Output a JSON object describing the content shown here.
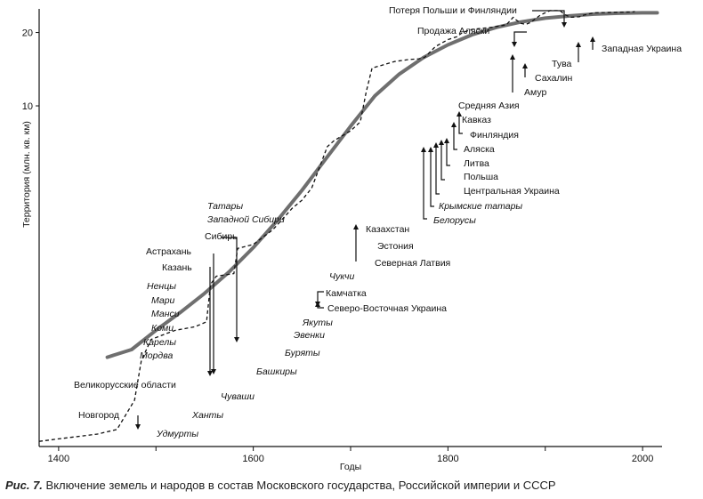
{
  "chart_data": {
    "type": "line",
    "xlabel": "Годы",
    "ylabel": "Территория (млн. кв. км)",
    "xlim": [
      1380,
      2020
    ],
    "ylim": [
      0.4,
      25
    ],
    "y_scale": "log",
    "x_ticks": [
      1400,
      1600,
      1800,
      2000
    ],
    "x_minor_ticks": [
      1500,
      1700,
      1900
    ],
    "y_ticks": [
      10,
      20
    ],
    "series": [
      {
        "name": "logistic-trend",
        "style": "solid",
        "points": [
          [
            1450,
            0.93
          ],
          [
            1475,
            1.0
          ],
          [
            1500,
            1.2
          ],
          [
            1525,
            1.42
          ],
          [
            1550,
            1.7
          ],
          [
            1575,
            2.08
          ],
          [
            1600,
            2.62
          ],
          [
            1625,
            3.4
          ],
          [
            1650,
            4.5
          ],
          [
            1675,
            6.1
          ],
          [
            1700,
            8.25
          ],
          [
            1725,
            11.0
          ],
          [
            1750,
            13.5
          ],
          [
            1775,
            15.8
          ],
          [
            1800,
            17.8
          ],
          [
            1825,
            19.6
          ],
          [
            1850,
            21.0
          ],
          [
            1875,
            22.1
          ],
          [
            1900,
            22.9
          ],
          [
            1925,
            23.4
          ],
          [
            1950,
            23.8
          ],
          [
            1975,
            24.0
          ],
          [
            2000,
            24.1
          ],
          [
            2015,
            24.1
          ]
        ]
      },
      {
        "name": "actual-territory",
        "style": "dashed",
        "points": [
          [
            1380,
            0.42
          ],
          [
            1400,
            0.43
          ],
          [
            1420,
            0.44
          ],
          [
            1440,
            0.45
          ],
          [
            1460,
            0.47
          ],
          [
            1478,
            0.62
          ],
          [
            1485,
            0.9
          ],
          [
            1495,
            1.1
          ],
          [
            1510,
            1.16
          ],
          [
            1520,
            1.2
          ],
          [
            1540,
            1.24
          ],
          [
            1552,
            1.3
          ],
          [
            1556,
            1.85
          ],
          [
            1562,
            2.0
          ],
          [
            1580,
            2.05
          ],
          [
            1584,
            2.6
          ],
          [
            1600,
            2.7
          ],
          [
            1620,
            3.1
          ],
          [
            1640,
            3.8
          ],
          [
            1650,
            4.1
          ],
          [
            1660,
            4.6
          ],
          [
            1676,
            6.8
          ],
          [
            1683,
            7.2
          ],
          [
            1700,
            7.9
          ],
          [
            1710,
            8.6
          ],
          [
            1716,
            11.4
          ],
          [
            1722,
            14.3
          ],
          [
            1730,
            14.6
          ],
          [
            1745,
            15.2
          ],
          [
            1760,
            15.5
          ],
          [
            1770,
            15.6
          ],
          [
            1776,
            15.8
          ],
          [
            1780,
            16.4
          ],
          [
            1787,
            17.5
          ],
          [
            1800,
            18.7
          ],
          [
            1809,
            19.2
          ],
          [
            1815,
            20.0
          ],
          [
            1825,
            20.6
          ],
          [
            1845,
            21.0
          ],
          [
            1860,
            21.5
          ],
          [
            1867,
            23.1
          ],
          [
            1869,
            22.7
          ],
          [
            1875,
            21.8
          ],
          [
            1880,
            21.6
          ],
          [
            1885,
            22.0
          ],
          [
            1895,
            23.6
          ],
          [
            1905,
            24.6
          ],
          [
            1915,
            24.6
          ],
          [
            1920,
            23.7
          ],
          [
            1926,
            23.1
          ],
          [
            1935,
            23.2
          ],
          [
            1940,
            23.6
          ],
          [
            1950,
            24.1
          ],
          [
            1970,
            24.2
          ],
          [
            1990,
            24.3
          ],
          [
            1992,
            24.4
          ]
        ]
      }
    ],
    "annotations": [
      {
        "text": "Новгород",
        "italic": false,
        "year": 1478,
        "dir": "up"
      },
      {
        "text": "Удмурты",
        "italic": true
      },
      {
        "text": "Великорусские области",
        "italic": false
      },
      {
        "text": "Ханты",
        "italic": true
      },
      {
        "text": "Ненцы",
        "italic": true
      },
      {
        "text": "Мари",
        "italic": true
      },
      {
        "text": "Манси",
        "italic": true
      },
      {
        "text": "Коми",
        "italic": true
      },
      {
        "text": "Карелы",
        "italic": true
      },
      {
        "text": "Мордва",
        "italic": true
      },
      {
        "text": "Казань",
        "italic": false,
        "year": 1552,
        "dir": "up"
      },
      {
        "text": "Астрахань",
        "italic": false,
        "year": 1556,
        "dir": "up"
      },
      {
        "text": "Сибирь",
        "italic": false,
        "year": 1581,
        "dir": "up"
      },
      {
        "text": "Татары",
        "italic": true
      },
      {
        "text": "Западной Сибири",
        "italic": true
      },
      {
        "text": "Чуваши",
        "italic": true
      },
      {
        "text": "Башкиры",
        "italic": true
      },
      {
        "text": "Буряты",
        "italic": true
      },
      {
        "text": "Эвенки",
        "italic": true
      },
      {
        "text": "Якуты",
        "italic": true
      },
      {
        "text": "Чукчи",
        "italic": true
      },
      {
        "text": "Камчатка",
        "italic": false,
        "year": 1697,
        "dir": "up"
      },
      {
        "text": "Северо-Восточная Украина",
        "italic": false,
        "year": 1654,
        "dir": "up"
      },
      {
        "text": "Казахстан",
        "italic": false,
        "year": 1710,
        "dir": "up"
      },
      {
        "text": "Эстония",
        "italic": false,
        "year": 1710,
        "dir": "up"
      },
      {
        "text": "Северная Латвия",
        "italic": false,
        "year": 1710,
        "dir": "up"
      },
      {
        "text": "Белорусы",
        "italic": true
      },
      {
        "text": "Крымские татары",
        "italic": true
      },
      {
        "text": "Центральная Украина",
        "italic": false,
        "year": 1783,
        "dir": "up"
      },
      {
        "text": "Польша",
        "italic": false,
        "year": 1795,
        "dir": "up"
      },
      {
        "text": "Литва",
        "italic": false,
        "year": 1795,
        "dir": "up"
      },
      {
        "text": "Аляска",
        "italic": false,
        "year": 1799,
        "dir": "up"
      },
      {
        "text": "Финляндия",
        "italic": false,
        "year": 1809,
        "dir": "up"
      },
      {
        "text": "Кавказ",
        "italic": false,
        "year": 1813,
        "dir": "up"
      },
      {
        "text": "Средняя Азия",
        "italic": false
      },
      {
        "text": "Амур",
        "italic": false,
        "year": 1858,
        "dir": "up"
      },
      {
        "text": "Продажа Аляски",
        "italic": false,
        "year": 1867,
        "dir": "down"
      },
      {
        "text": "Сахалин",
        "italic": false,
        "year": 1875,
        "dir": "up"
      },
      {
        "text": "Потеря Польши и Финляндии",
        "italic": false,
        "year": 1918,
        "dir": "down"
      },
      {
        "text": "Тува",
        "italic": false,
        "year": 1944,
        "dir": "up"
      },
      {
        "text": "Западная Украина",
        "italic": false,
        "year": 1939,
        "dir": "up"
      }
    ]
  },
  "caption": {
    "figure_label": "Рис. 7.",
    "text": " Включение земель и народов в состав Московского государства, Российской империи и СССР"
  }
}
